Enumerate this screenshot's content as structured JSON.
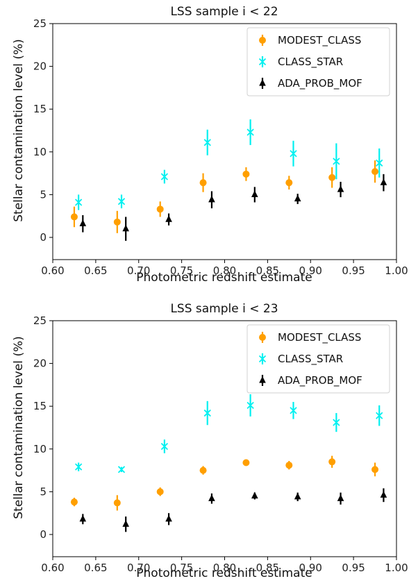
{
  "chart_data": [
    {
      "type": "scatter",
      "title": "LSS sample i < 22",
      "xlabel": "Photometric redshift estimate",
      "ylabel": "Stellar contamination level (%)",
      "xlim": [
        0.6,
        1.0
      ],
      "ylim": [
        0,
        25
      ],
      "xticks": [
        "0.60",
        "0.65",
        "0.70",
        "0.75",
        "0.80",
        "0.85",
        "0.90",
        "0.95",
        "1.00"
      ],
      "yticks": [
        "0",
        "5",
        "10",
        "15",
        "20",
        "25"
      ],
      "legend_position": "top-right",
      "series": [
        {
          "name": "MODEST_CLASS",
          "color": "#ff9f00",
          "marker": "circle",
          "x": [
            0.625,
            0.675,
            0.725,
            0.775,
            0.825,
            0.875,
            0.925,
            0.975
          ],
          "y": [
            2.4,
            1.8,
            3.3,
            6.4,
            7.4,
            6.4,
            7.0,
            7.7
          ],
          "err": [
            1.2,
            1.3,
            0.9,
            1.1,
            0.8,
            0.8,
            1.2,
            1.3
          ]
        },
        {
          "name": "CLASS_STAR",
          "color": "#00f0f0",
          "marker": "x",
          "x": [
            0.63,
            0.68,
            0.73,
            0.78,
            0.83,
            0.88,
            0.93,
            0.98
          ],
          "y": [
            4.1,
            4.2,
            7.1,
            11.1,
            12.3,
            9.8,
            8.9,
            8.7
          ],
          "err": [
            0.9,
            0.8,
            0.8,
            1.5,
            1.5,
            1.5,
            2.1,
            1.7
          ]
        },
        {
          "name": "ADA_PROB_MOF",
          "color": "#000000",
          "marker": "triangle",
          "x": [
            0.635,
            0.685,
            0.735,
            0.785,
            0.835,
            0.885,
            0.935,
            0.985
          ],
          "y": [
            1.6,
            1.0,
            2.1,
            4.4,
            5.0,
            4.5,
            5.6,
            6.4
          ],
          "err": [
            1.0,
            1.4,
            0.7,
            1.0,
            0.9,
            0.6,
            0.9,
            1.0
          ]
        }
      ]
    },
    {
      "type": "scatter",
      "title": "LSS sample i < 23",
      "xlabel": "Photometric redshift estimate",
      "ylabel": "Stellar contamination level (%)",
      "xlim": [
        0.6,
        1.0
      ],
      "ylim": [
        0,
        25
      ],
      "xticks": [
        "0.60",
        "0.65",
        "0.70",
        "0.75",
        "0.80",
        "0.85",
        "0.90",
        "0.95",
        "1.00"
      ],
      "yticks": [
        "0",
        "5",
        "10",
        "15",
        "20",
        "25"
      ],
      "legend_position": "top-right",
      "series": [
        {
          "name": "MODEST_CLASS",
          "color": "#ff9f00",
          "marker": "circle",
          "x": [
            0.625,
            0.675,
            0.725,
            0.775,
            0.825,
            0.875,
            0.925,
            0.975
          ],
          "y": [
            3.8,
            3.7,
            5.0,
            7.5,
            8.4,
            8.1,
            8.5,
            7.6
          ],
          "err": [
            0.5,
            0.9,
            0.5,
            0.5,
            0.3,
            0.5,
            0.7,
            0.8
          ]
        },
        {
          "name": "CLASS_STAR",
          "color": "#00f0f0",
          "marker": "x",
          "x": [
            0.63,
            0.68,
            0.73,
            0.78,
            0.83,
            0.88,
            0.93,
            0.98
          ],
          "y": [
            7.9,
            7.6,
            10.3,
            14.2,
            15.1,
            14.5,
            13.1,
            13.9
          ],
          "err": [
            0.5,
            0.3,
            0.8,
            1.4,
            1.3,
            1.0,
            1.1,
            1.2
          ]
        },
        {
          "name": "ADA_PROB_MOF",
          "color": "#000000",
          "marker": "triangle",
          "x": [
            0.635,
            0.685,
            0.735,
            0.785,
            0.835,
            0.885,
            0.935,
            0.985
          ],
          "y": [
            1.8,
            1.2,
            1.8,
            4.2,
            4.5,
            4.4,
            4.2,
            4.6
          ],
          "err": [
            0.6,
            0.9,
            0.7,
            0.6,
            0.4,
            0.5,
            0.7,
            0.8
          ]
        }
      ]
    }
  ]
}
